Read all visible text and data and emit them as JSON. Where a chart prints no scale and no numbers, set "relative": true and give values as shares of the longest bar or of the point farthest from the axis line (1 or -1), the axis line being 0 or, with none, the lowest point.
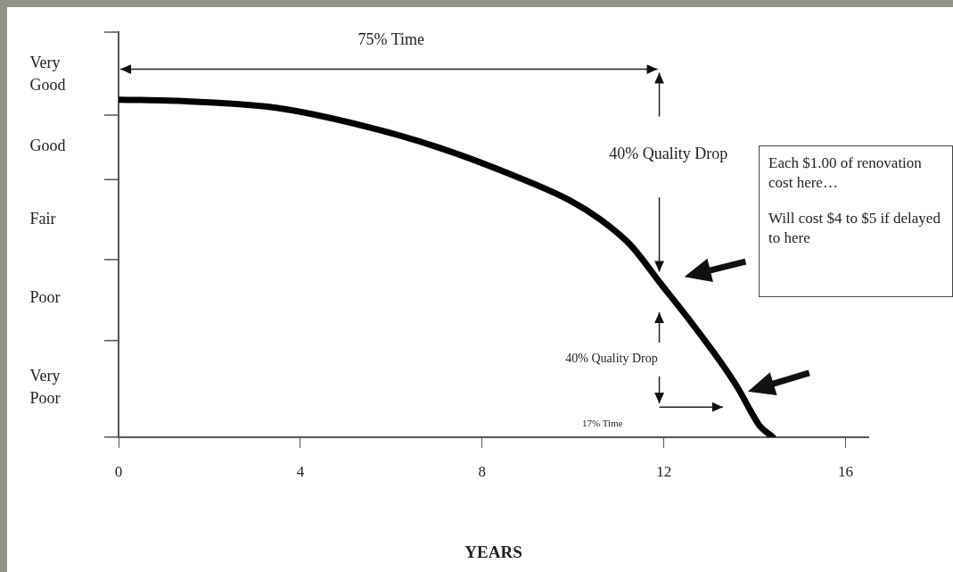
{
  "chart_data": {
    "type": "line",
    "relative": true,
    "xlabel": "YEARS",
    "xlim": [
      0,
      16.5
    ],
    "xticks": [
      0,
      4,
      8,
      12,
      16
    ],
    "x": [
      0,
      1.5,
      3.5,
      5.45,
      7,
      8.6,
      9.95,
      10.6,
      11.26,
      11.93,
      12.59,
      13.24,
      13.64,
      13.92,
      14.1,
      14.4
    ],
    "series": [
      {
        "color": "#000000",
        "values": [
          1,
          0.995,
          0.975,
          0.92,
          0.86,
          0.78,
          0.7,
          0.645,
          0.57,
          0.455,
          0.342,
          0.224,
          0.143,
          0.075,
          0.035,
          0
        ]
      }
    ],
    "marker": "none",
    "line_style": "solid",
    "grid": false,
    "legend": false,
    "annotations": [
      "75% Time",
      "40% Quality Drop",
      "40% Quality Drop",
      "17% Time",
      "Each $1.00 of renovation cost here…",
      "Will cost $4 to $5 if delayed to here",
      "Very Good",
      "Good",
      "Fair",
      "Poor",
      "Very Poor"
    ]
  }
}
